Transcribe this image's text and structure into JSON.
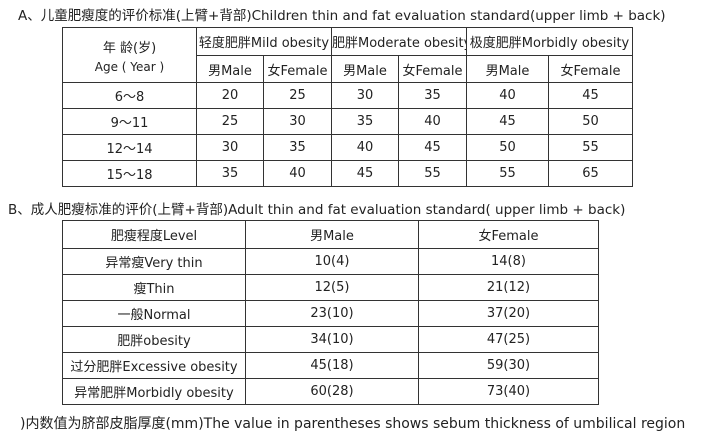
{
  "section_a": {
    "title": "A、儿童肥瘦度的评价标准(上臂+背部)Children thin and fat evaluation standard(upper limb + back)",
    "age_label": "年 龄(岁)",
    "age_label_en": "Age ( Year )",
    "groups": [
      "轻度肥胖Mild obesity",
      "肥胖Moderate obesity",
      "极度肥胖Morbidly obesity"
    ],
    "sexes": [
      "男Male",
      "女Female",
      "男Male",
      "女Female",
      "男Male",
      "女Female"
    ],
    "rows": [
      {
        "age": "6～8",
        "values": [
          20,
          25,
          30,
          35,
          40,
          45
        ]
      },
      {
        "age": "9～11",
        "values": [
          25,
          30,
          35,
          40,
          45,
          50
        ]
      },
      {
        "age": "12～14",
        "values": [
          30,
          35,
          40,
          45,
          50,
          55
        ]
      },
      {
        "age": "15～18",
        "values": [
          35,
          40,
          45,
          55,
          55,
          65
        ]
      }
    ]
  },
  "section_b": {
    "title": "B、成人肥瘦标准的评价(上臂+背部)Adult thin and fat evaluation standard( upper limb + back)",
    "header": [
      "肥瘦程度Level",
      "男Male",
      "女Female"
    ],
    "rows": [
      [
        "异常瘦Very thin",
        "10(4)",
        "14(8)"
      ],
      [
        "瘦Thin",
        "12(5)",
        "21(12)"
      ],
      [
        "一般Normal",
        "23(10)",
        "37(20)"
      ],
      [
        "肥胖obesity",
        "34(10)",
        "47(25)"
      ],
      [
        "过分肥胖Excessive obesity",
        "45(18)",
        "59(30)"
      ],
      [
        "异常肥胖Morbidly obesity",
        "60(28)",
        "73(40)"
      ]
    ]
  },
  "footer": ")内数值为脐部皮脂厚度(mm)The value in parentheses shows sebum thickness of umbilical region"
}
